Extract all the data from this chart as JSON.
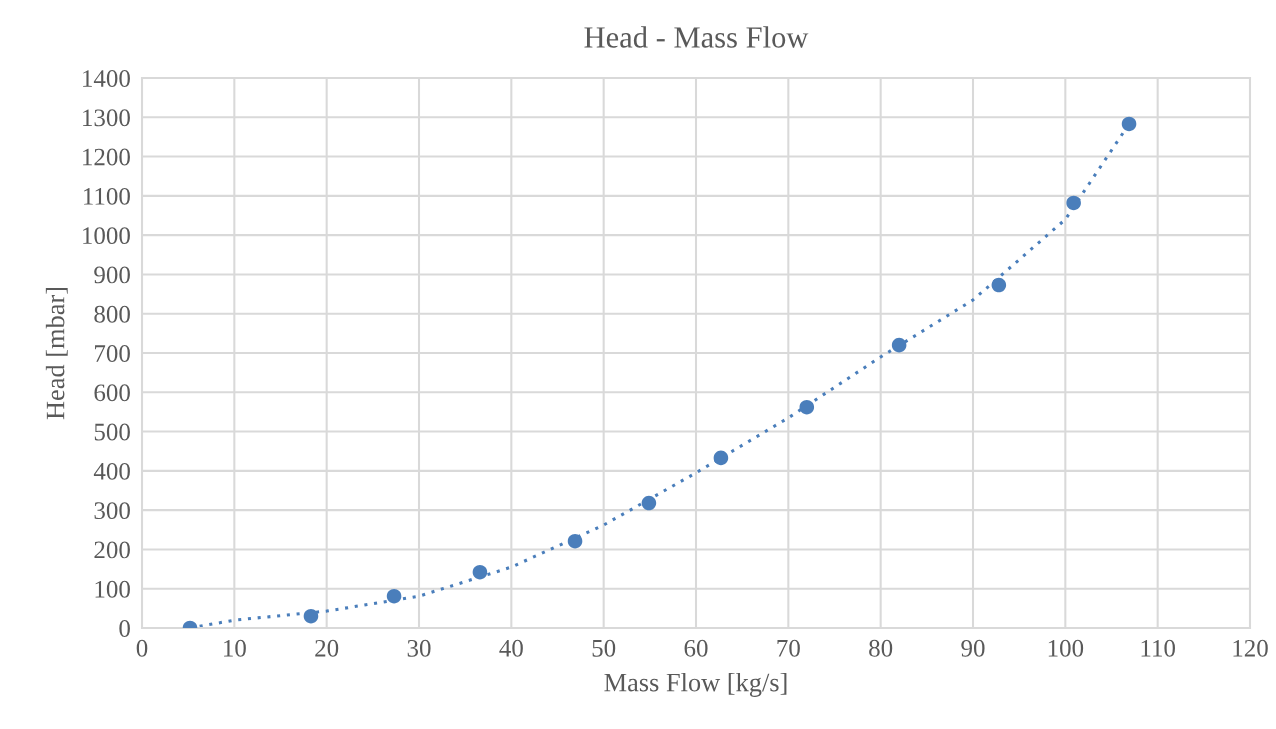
{
  "chart_data": {
    "type": "scatter",
    "title": "Head - Mass Flow",
    "xlabel": "Mass Flow [kg/s]",
    "ylabel": "Head [mbar]",
    "x": [
      5.2,
      18.3,
      27.3,
      36.6,
      46.9,
      54.9,
      62.7,
      72.0,
      82.0,
      92.8,
      100.9,
      106.9
    ],
    "series": [
      {
        "color": "#4a7ebb",
        "marker": "circle",
        "values": [
          0,
          30,
          81,
          142,
          221,
          318,
          433,
          562,
          720,
          873,
          1082,
          1283
        ]
      },
      {
        "type": "line",
        "color": "#4a7ebb",
        "line_style": "dotted",
        "marker": "none",
        "x": [
          5.2,
          10,
          20,
          30,
          40,
          50,
          60,
          70,
          80,
          90,
          100,
          106.9
        ],
        "values": [
          0,
          20,
          43,
          81,
          155,
          262,
          395,
          535,
          690,
          835,
          1040,
          1283
        ]
      }
    ],
    "xlim": [
      0,
      120
    ],
    "xticks": [
      0,
      10,
      20,
      30,
      40,
      50,
      60,
      70,
      80,
      90,
      100,
      110,
      120
    ],
    "ylim": [
      0,
      1400
    ],
    "yticks": [
      0,
      100,
      200,
      300,
      400,
      500,
      600,
      700,
      800,
      900,
      1000,
      1100,
      1200,
      1300,
      1400
    ],
    "grid": true
  }
}
